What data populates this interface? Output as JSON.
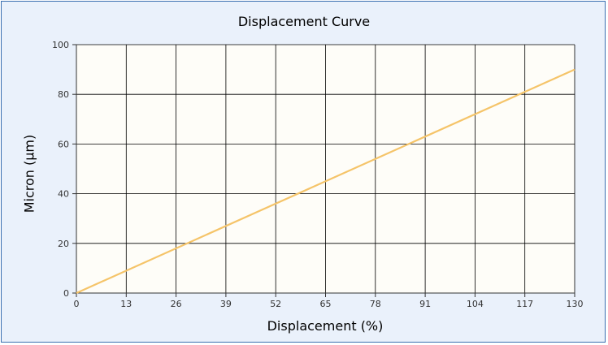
{
  "chart_data": {
    "type": "line",
    "title": "Displacement Curve",
    "xlabel": "Displacement (%)",
    "ylabel": "Micron (µm)",
    "xlim": [
      0,
      130
    ],
    "ylim": [
      0,
      100
    ],
    "x_ticks": [
      "0",
      "13",
      "26",
      "39",
      "52",
      "65",
      "78",
      "91",
      "104",
      "117",
      "130"
    ],
    "y_ticks": [
      "0",
      "20",
      "40",
      "60",
      "80",
      "100"
    ],
    "grid": true,
    "series": [
      {
        "x": [
          0,
          130
        ],
        "y": [
          0,
          90
        ],
        "color": "#f5c469"
      }
    ]
  },
  "colors": {
    "frame_border": "#3a6fb0",
    "frame_background": "#eaf1fb",
    "plot_background": "#fefdf8",
    "grid": "#000000"
  }
}
